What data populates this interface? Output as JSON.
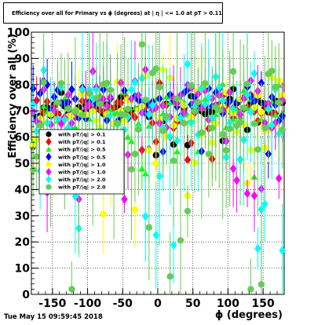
{
  "chart_data": {
    "type": "scatter",
    "title": "Efficiency over all for Primary vs ϕ (degrees) at | η | <= 1.0 at pT > 0.11",
    "xlabel": "ϕ (degrees)",
    "ylabel": "Efficiency over all (%)",
    "xlim": [
      -180,
      180
    ],
    "ylim": [
      0,
      100
    ],
    "xticks": [
      -150,
      -100,
      -50,
      0,
      50,
      100,
      150
    ],
    "yticks": [
      0,
      10,
      20,
      30,
      40,
      50,
      60,
      70,
      80,
      90,
      100
    ],
    "grid": true,
    "legend_position": "left",
    "legend": [
      {
        "name": "with pT/|q| > 0.1",
        "color": "#000000",
        "marker": "circle"
      },
      {
        "name": "with pT/|q| > 0.1",
        "color": "#ff0000",
        "marker": "diamond"
      },
      {
        "name": "with pT/|q| > 0.5",
        "color": "#00ff00",
        "marker": "triangle"
      },
      {
        "name": "with pT/|q| > 0.5",
        "color": "#0000ff",
        "marker": "diamond"
      },
      {
        "name": "with pT/|q| > 1.0",
        "color": "#ffff00",
        "marker": "circle"
      },
      {
        "name": "with pT/|q| > 1.0",
        "color": "#ff00ff",
        "marker": "diamond"
      },
      {
        "name": "with pT/|q| > 2.0",
        "color": "#00ffff",
        "marker": "diamond"
      },
      {
        "name": "with pT/|q| > 2.0",
        "color": "#66cc55",
        "marker": "circle"
      }
    ],
    "series": [
      {
        "color": "#000000",
        "marker": "circle",
        "bins": 72,
        "mean": 71,
        "spread": 4,
        "error": 6,
        "seed": 11
      },
      {
        "color": "#ff0000",
        "marker": "diamond",
        "bins": 72,
        "mean": 72,
        "spread": 5,
        "error": 7,
        "seed": 23
      },
      {
        "color": "#00ff00",
        "marker": "triangle",
        "bins": 72,
        "mean": 70,
        "spread": 7,
        "error": 9,
        "seed": 37
      },
      {
        "color": "#0000ff",
        "marker": "diamond",
        "bins": 72,
        "mean": 74,
        "spread": 5,
        "error": 8,
        "seed": 41
      },
      {
        "color": "#ffff00",
        "marker": "circle",
        "bins": 72,
        "mean": 70,
        "spread": 9,
        "error": 12,
        "seed": 53
      },
      {
        "color": "#ff00ff",
        "marker": "diamond",
        "bins": 72,
        "mean": 72,
        "spread": 8,
        "error": 12,
        "seed": 67
      },
      {
        "color": "#00ffff",
        "marker": "diamond",
        "bins": 72,
        "mean": 70,
        "spread": 14,
        "error": 20,
        "seed": 79
      },
      {
        "color": "#66cc55",
        "marker": "circle",
        "bins": 72,
        "mean": 68,
        "spread": 16,
        "error": 24,
        "seed": 97
      }
    ]
  },
  "timestamp": "Tue May 15 09:59:45 2018"
}
